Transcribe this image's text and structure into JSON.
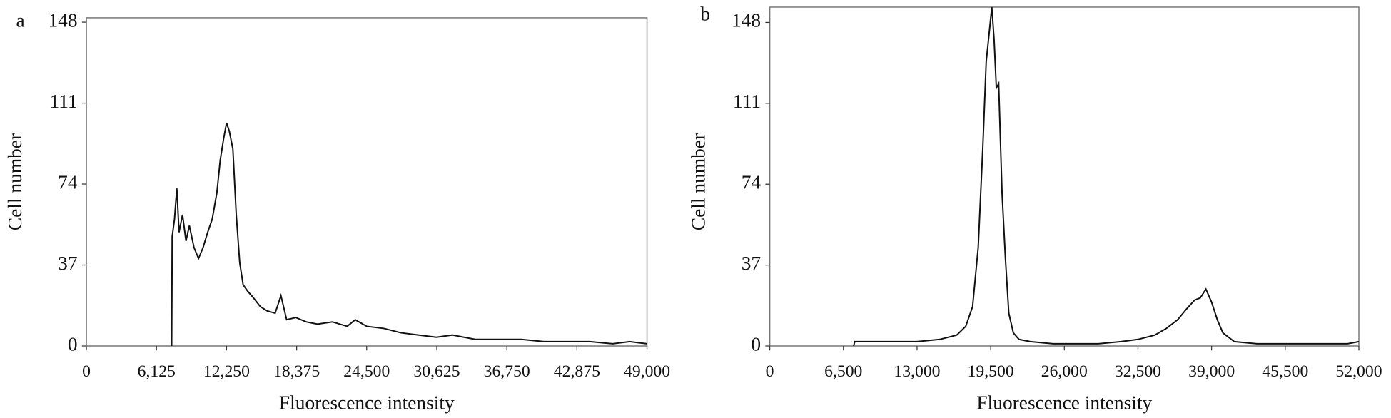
{
  "chart_data": [
    {
      "type": "line",
      "panel_label": "a",
      "x_label": "Fluorescence intensity",
      "y_label": "Cell number",
      "xlim": [
        0,
        49000
      ],
      "ylim": [
        0,
        150
      ],
      "xticks": [
        0,
        {
          "value": 6125,
          "label": "6,125"
        },
        {
          "value": 12250,
          "label": "12,250"
        },
        {
          "value": 18375,
          "label": "18,375"
        },
        {
          "value": 24500,
          "label": "24,500"
        },
        {
          "value": 30625,
          "label": "30,625"
        },
        {
          "value": 36750,
          "label": "36,750"
        },
        {
          "value": 42875,
          "label": "42,875"
        },
        {
          "value": 49000,
          "label": "49,000"
        }
      ],
      "yticks": [
        0,
        37,
        74,
        111,
        148
      ],
      "series": [
        {
          "color": "#111111",
          "x": [
            7450,
            7500,
            7700,
            7900,
            8100,
            8400,
            8700,
            9000,
            9400,
            9800,
            10200,
            10600,
            11000,
            11400,
            11700,
            12000,
            12250,
            12500,
            12800,
            13100,
            13400,
            13700,
            14100,
            14600,
            15200,
            15800,
            16500,
            17000,
            17500,
            18300,
            19200,
            20200,
            21500,
            22800,
            23500,
            24500,
            26000,
            27500,
            29000,
            30600,
            32000,
            34000,
            36000,
            38000,
            40000,
            42000,
            44000,
            46000,
            47500,
            49000
          ],
          "values": [
            0,
            50,
            58,
            72,
            52,
            60,
            48,
            55,
            45,
            40,
            45,
            52,
            58,
            70,
            85,
            95,
            102,
            98,
            90,
            60,
            38,
            28,
            25,
            22,
            18,
            16,
            15,
            23,
            12,
            13,
            11,
            10,
            11,
            9,
            12,
            9,
            8,
            6,
            5,
            4,
            5,
            3,
            3,
            3,
            2,
            2,
            2,
            1,
            2,
            1
          ]
        }
      ]
    },
    {
      "type": "line",
      "panel_label": "b",
      "x_label": "Fluorescence intensity",
      "y_label": "Cell number",
      "xlim": [
        0,
        52000
      ],
      "ylim": [
        0,
        155
      ],
      "xticks": [
        0,
        {
          "value": 6500,
          "label": "6,500"
        },
        {
          "value": 13000,
          "label": "13,000"
        },
        {
          "value": 19500,
          "label": "19,500"
        },
        {
          "value": 26000,
          "label": "26,000"
        },
        {
          "value": 32500,
          "label": "32,500"
        },
        {
          "value": 39000,
          "label": "39,000"
        },
        {
          "value": 45500,
          "label": "45,500"
        },
        {
          "value": 52000,
          "label": "52,000"
        }
      ],
      "yticks": [
        0,
        37,
        74,
        111,
        148
      ],
      "series": [
        {
          "color": "#111111",
          "x": [
            7400,
            7500,
            9000,
            11000,
            13000,
            15000,
            16500,
            17300,
            17900,
            18400,
            18800,
            19100,
            19400,
            19600,
            19800,
            20000,
            20200,
            20500,
            20800,
            21100,
            21500,
            22000,
            23000,
            25000,
            27000,
            29000,
            31000,
            32500,
            34000,
            35000,
            36000,
            36800,
            37500,
            38000,
            38500,
            39000,
            39500,
            40000,
            40500,
            41000,
            43000,
            45000,
            47000,
            49000,
            51000,
            52000
          ],
          "values": [
            0,
            2,
            2,
            2,
            2,
            3,
            5,
            9,
            18,
            45,
            90,
            130,
            145,
            155,
            140,
            118,
            120,
            70,
            40,
            15,
            6,
            3,
            2,
            1,
            1,
            1,
            2,
            3,
            5,
            8,
            12,
            17,
            21,
            22,
            26,
            20,
            12,
            6,
            4,
            2,
            1,
            1,
            1,
            1,
            1,
            2
          ]
        }
      ]
    }
  ]
}
